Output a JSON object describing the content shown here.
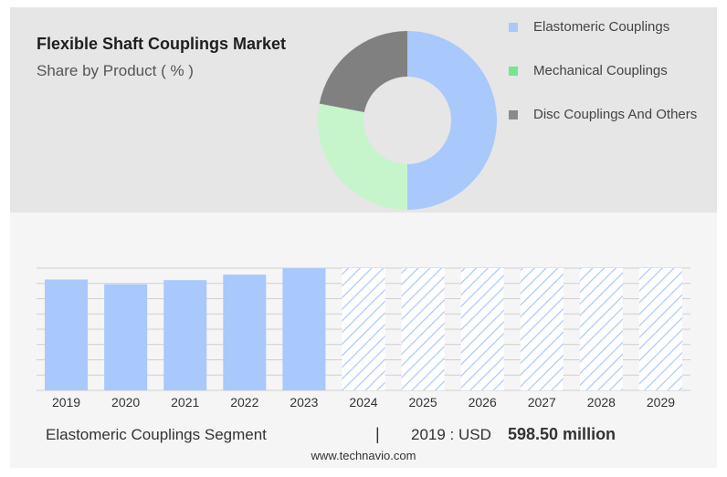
{
  "header": {
    "title": "Flexible Shaft Couplings Market",
    "subtitle": "Share by Product ( % )"
  },
  "legend": [
    {
      "label": "Elastomeric Couplings",
      "color": "#a9c8fb"
    },
    {
      "label": "Mechanical Couplings",
      "color": "#77e48f"
    },
    {
      "label": "Disc Couplings And Others",
      "color": "#8a8a8a"
    }
  ],
  "footer": {
    "segment": "Elastomeric Couplings Segment",
    "divider": "|",
    "year_label": "2019 : USD",
    "value": "598.50 million",
    "url": "www.technavio.com"
  },
  "chart_data": [
    {
      "type": "pie",
      "variant": "donut",
      "labels": [
        "Elastomeric Couplings",
        "Mechanical Couplings",
        "Disc Couplings And Others"
      ],
      "values": [
        50,
        28,
        22
      ],
      "colors": [
        "#a9c8fb",
        "#c6f5cc",
        "#808080"
      ]
    },
    {
      "type": "bar",
      "categories": [
        "2019",
        "2020",
        "2021",
        "2022",
        "2023",
        "2024",
        "2025",
        "2026",
        "2027",
        "2028",
        "2029"
      ],
      "values": [
        598.5,
        573,
        595,
        625,
        659,
        null,
        null,
        null,
        null,
        null,
        null
      ],
      "forecast_categories": [
        "2024",
        "2025",
        "2026",
        "2027",
        "2028",
        "2029"
      ],
      "ylim": [
        0,
        660
      ],
      "grid": true,
      "actual_color": "#a9c8fb",
      "forecast_style": "hatched"
    }
  ]
}
